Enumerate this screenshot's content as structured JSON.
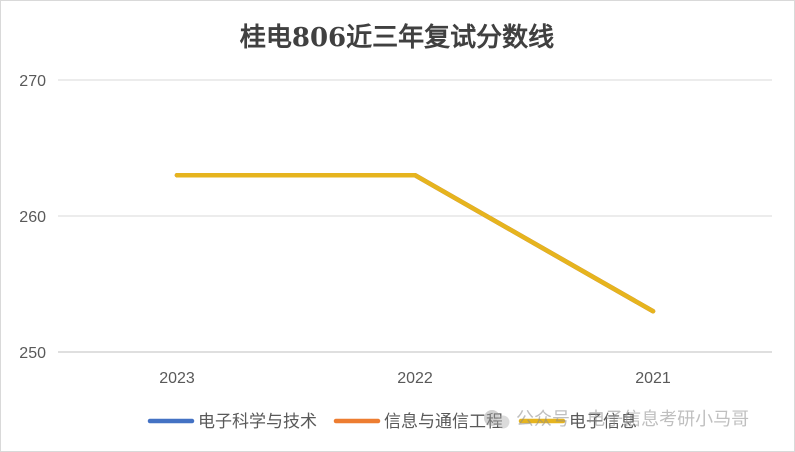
{
  "chart_data": {
    "type": "line",
    "title": "桂电806近三年复试分数线",
    "xlabel": "",
    "ylabel": "",
    "categories": [
      "2023",
      "2022",
      "2021"
    ],
    "ylim": [
      250,
      270
    ],
    "yticks": [
      "250",
      "260",
      "270"
    ],
    "grid": true,
    "legend_position": "bottom",
    "series": [
      {
        "name": "电子科学与技术",
        "color": "#4472C4",
        "values": [
          263,
          263,
          253
        ]
      },
      {
        "name": "信息与通信工程",
        "color": "#ED7D31",
        "values": [
          263,
          263,
          253
        ]
      },
      {
        "name": "电子信息",
        "color": "#E6B41E",
        "values": [
          263,
          263,
          253
        ]
      }
    ]
  },
  "watermark": {
    "text": "公众号 · 电子信息考研小马哥",
    "icon": "wechat-icon"
  }
}
